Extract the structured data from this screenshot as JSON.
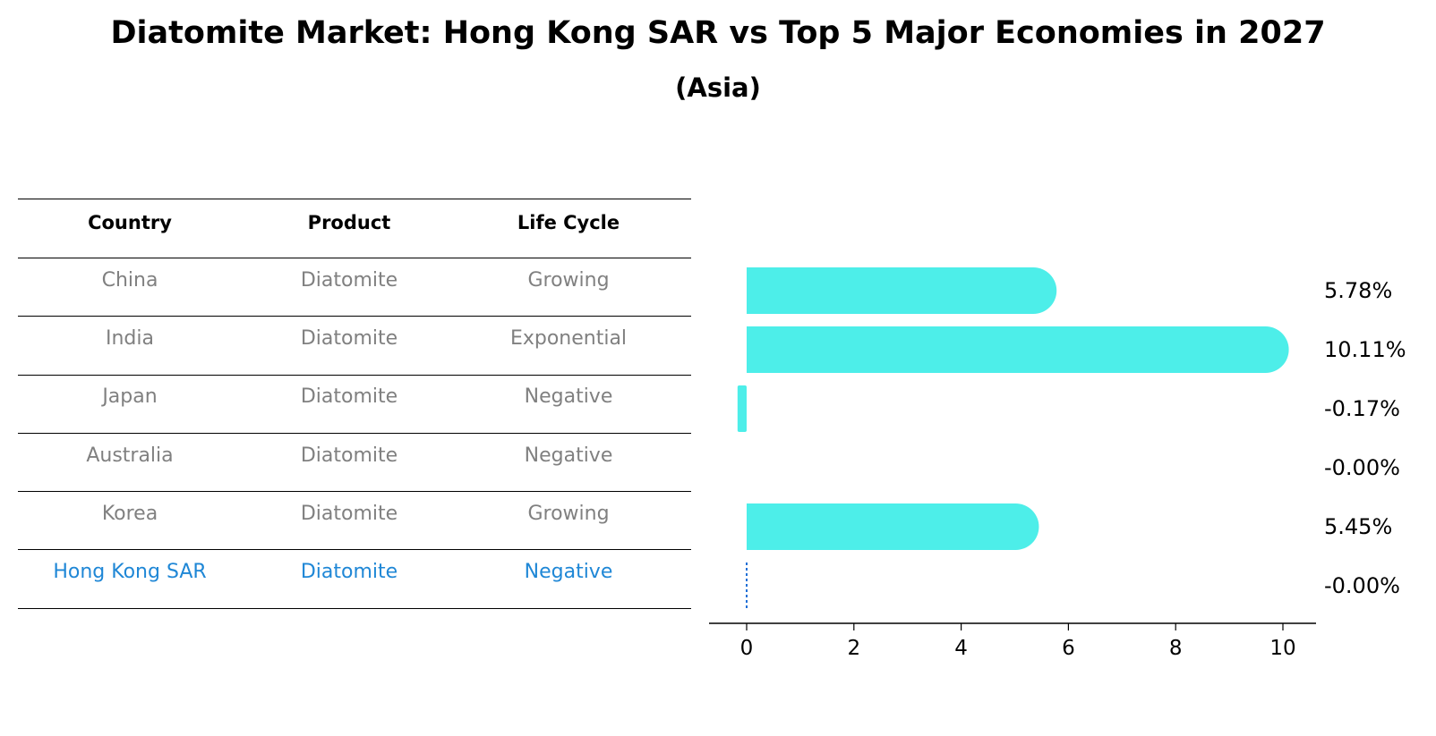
{
  "title": "Diatomite Market: Hong Kong SAR vs Top 5 Major Economies in 2027",
  "subtitle": "(Asia)",
  "table": {
    "headers": [
      "Country",
      "Product",
      "Life Cycle"
    ],
    "rows": [
      {
        "country": "China",
        "product": "Diatomite",
        "life_cycle": "Growing"
      },
      {
        "country": "India",
        "product": "Diatomite",
        "life_cycle": "Exponential"
      },
      {
        "country": "Japan",
        "product": "Diatomite",
        "life_cycle": "Negative"
      },
      {
        "country": "Australia",
        "product": "Diatomite",
        "life_cycle": "Negative"
      },
      {
        "country": "Korea",
        "product": "Diatomite",
        "life_cycle": "Growing"
      },
      {
        "country": "Hong Kong SAR",
        "product": "Diatomite",
        "life_cycle": "Negative",
        "highlight": true
      }
    ]
  },
  "chart_data": {
    "type": "bar",
    "orientation": "horizontal",
    "categories": [
      "China",
      "India",
      "Japan",
      "Australia",
      "Korea",
      "Hong Kong SAR"
    ],
    "values": [
      5.78,
      10.11,
      -0.17,
      -0.0,
      5.45,
      -0.0
    ],
    "value_labels": [
      "5.78%",
      "10.11%",
      "-0.17%",
      "-0.00%",
      "5.45%",
      "-0.00%"
    ],
    "xlim": [
      -0.7,
      10.6
    ],
    "xticks": [
      0,
      2,
      4,
      6,
      8,
      10
    ],
    "xlabel": "",
    "ylabel": "",
    "grid": false,
    "colors": {
      "bar": "#4deee9",
      "highlight_line": "#1f6fd6",
      "text": "#000000",
      "muted_text": "#808080",
      "highlight_text": "#1f87d6"
    }
  }
}
